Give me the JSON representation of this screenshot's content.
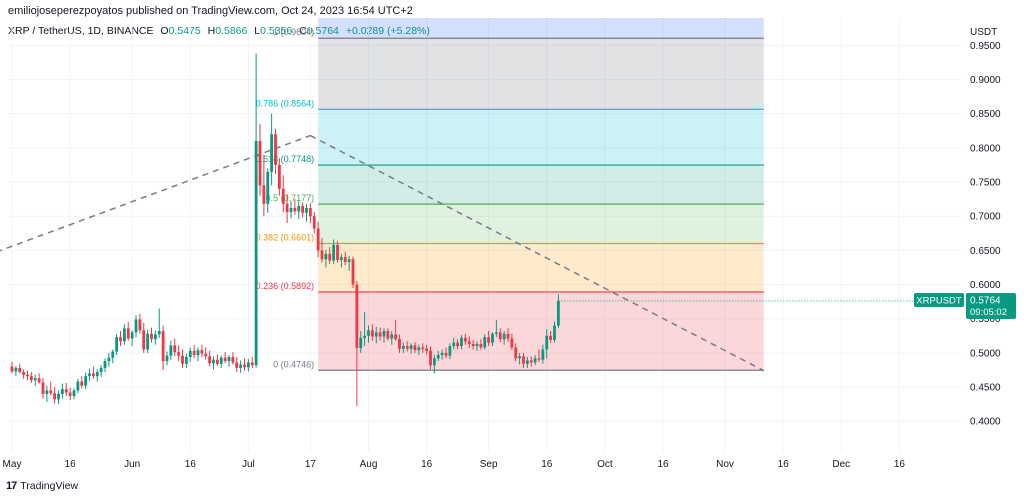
{
  "publisher_line": "emiliojoseperezpoyatos published on TradingView.com, Oct 24, 2023 16:54 UTC+2",
  "symbol_header": {
    "symbol": "XRP / TetherUS, 1D, BINANCE",
    "o_label": "O",
    "o_value": "0.5475",
    "h_label": "H",
    "h_value": "0.5866",
    "l_label": "L",
    "l_value": "0.5356",
    "c_label": "C",
    "c_value": "0.5764",
    "change": "+0.0289 (+5.28%)"
  },
  "currency": "USDT",
  "footer_brand": "TradingView",
  "footer_logo": "17",
  "price_tag": {
    "symbol": "XRPUSDT",
    "price": "0.5764",
    "countdown": "09:05:02"
  },
  "colors": {
    "up": "#089981",
    "down": "#f23645",
    "tag": "#089981",
    "grid": "#f0f3fa",
    "trend": "#787b86"
  },
  "chart_data": {
    "type": "candlestick",
    "ylim": [
      0.355,
      0.99
    ],
    "ytick_labels": [
      "0.9500",
      "0.9000",
      "0.8500",
      "0.8000",
      "0.7500",
      "0.7000",
      "0.6500",
      "0.6000",
      "0.5500",
      "0.5000",
      "0.4500",
      "0.4000"
    ],
    "ytick_values": [
      0.95,
      0.9,
      0.85,
      0.8,
      0.75,
      0.7,
      0.65,
      0.6,
      0.55,
      0.5,
      0.45,
      0.4
    ],
    "xtick_labels": [
      "May",
      "16",
      "Jun",
      "16",
      "Jul",
      "17",
      "Aug",
      "16",
      "Sep",
      "16",
      "Oct",
      "16",
      "Nov",
      "16",
      "Dec",
      "16"
    ],
    "xtick_days": [
      0,
      15,
      31,
      46,
      61,
      77,
      92,
      107,
      123,
      138,
      153,
      168,
      184,
      199,
      214,
      229
    ],
    "x_unit": "days since May 1, 2023",
    "candles": [
      [
        0.48,
        0.487,
        0.47,
        0.473
      ],
      [
        0.473,
        0.481,
        0.466,
        0.478
      ],
      [
        0.478,
        0.484,
        0.47,
        0.472
      ],
      [
        0.472,
        0.476,
        0.462,
        0.468
      ],
      [
        0.468,
        0.474,
        0.46,
        0.466
      ],
      [
        0.466,
        0.472,
        0.456,
        0.46
      ],
      [
        0.46,
        0.468,
        0.452,
        0.463
      ],
      [
        0.463,
        0.47,
        0.455,
        0.457
      ],
      [
        0.457,
        0.463,
        0.433,
        0.44
      ],
      [
        0.44,
        0.452,
        0.428,
        0.445
      ],
      [
        0.445,
        0.458,
        0.438,
        0.441
      ],
      [
        0.441,
        0.45,
        0.426,
        0.432
      ],
      [
        0.432,
        0.445,
        0.425,
        0.44
      ],
      [
        0.44,
        0.455,
        0.433,
        0.447
      ],
      [
        0.447,
        0.456,
        0.437,
        0.442
      ],
      [
        0.442,
        0.449,
        0.431,
        0.437
      ],
      [
        0.437,
        0.448,
        0.432,
        0.445
      ],
      [
        0.445,
        0.462,
        0.441,
        0.458
      ],
      [
        0.458,
        0.466,
        0.448,
        0.452
      ],
      [
        0.452,
        0.471,
        0.447,
        0.466
      ],
      [
        0.466,
        0.477,
        0.46,
        0.47
      ],
      [
        0.47,
        0.48,
        0.462,
        0.466
      ],
      [
        0.466,
        0.476,
        0.458,
        0.472
      ],
      [
        0.472,
        0.482,
        0.465,
        0.478
      ],
      [
        0.478,
        0.492,
        0.472,
        0.488
      ],
      [
        0.488,
        0.5,
        0.48,
        0.493
      ],
      [
        0.493,
        0.505,
        0.485,
        0.502
      ],
      [
        0.502,
        0.528,
        0.497,
        0.523
      ],
      [
        0.523,
        0.532,
        0.51,
        0.517
      ],
      [
        0.517,
        0.542,
        0.512,
        0.536
      ],
      [
        0.536,
        0.545,
        0.518,
        0.521
      ],
      [
        0.521,
        0.533,
        0.51,
        0.53
      ],
      [
        0.53,
        0.555,
        0.523,
        0.549
      ],
      [
        0.549,
        0.557,
        0.528,
        0.533
      ],
      [
        0.533,
        0.544,
        0.5,
        0.505
      ],
      [
        0.505,
        0.534,
        0.5,
        0.528
      ],
      [
        0.528,
        0.537,
        0.515,
        0.52
      ],
      [
        0.52,
        0.533,
        0.512,
        0.527
      ],
      [
        0.527,
        0.565,
        0.522,
        0.532
      ],
      [
        0.532,
        0.54,
        0.475,
        0.488
      ],
      [
        0.488,
        0.502,
        0.482,
        0.496
      ],
      [
        0.496,
        0.518,
        0.49,
        0.511
      ],
      [
        0.511,
        0.521,
        0.495,
        0.501
      ],
      [
        0.501,
        0.511,
        0.488,
        0.496
      ],
      [
        0.496,
        0.505,
        0.478,
        0.484
      ],
      [
        0.484,
        0.499,
        0.478,
        0.494
      ],
      [
        0.494,
        0.508,
        0.487,
        0.503
      ],
      [
        0.503,
        0.512,
        0.492,
        0.497
      ],
      [
        0.497,
        0.508,
        0.488,
        0.504
      ],
      [
        0.504,
        0.512,
        0.494,
        0.499
      ],
      [
        0.499,
        0.508,
        0.49,
        0.495
      ],
      [
        0.495,
        0.503,
        0.48,
        0.485
      ],
      [
        0.485,
        0.495,
        0.476,
        0.49
      ],
      [
        0.49,
        0.498,
        0.481,
        0.484
      ],
      [
        0.484,
        0.496,
        0.478,
        0.493
      ],
      [
        0.493,
        0.501,
        0.485,
        0.488
      ],
      [
        0.488,
        0.497,
        0.48,
        0.494
      ],
      [
        0.494,
        0.501,
        0.483,
        0.486
      ],
      [
        0.486,
        0.494,
        0.472,
        0.478
      ],
      [
        0.478,
        0.489,
        0.471,
        0.483
      ],
      [
        0.483,
        0.492,
        0.474,
        0.479
      ],
      [
        0.479,
        0.491,
        0.473,
        0.486
      ],
      [
        0.486,
        0.494,
        0.478,
        0.482
      ],
      [
        0.482,
        0.938,
        0.478,
        0.81
      ],
      [
        0.81,
        0.835,
        0.73,
        0.745
      ],
      [
        0.745,
        0.79,
        0.7,
        0.718
      ],
      [
        0.718,
        0.77,
        0.705,
        0.765
      ],
      [
        0.765,
        0.85,
        0.745,
        0.82
      ],
      [
        0.82,
        0.828,
        0.762,
        0.775
      ],
      [
        0.775,
        0.785,
        0.73,
        0.74
      ],
      [
        0.74,
        0.76,
        0.706,
        0.718
      ],
      [
        0.718,
        0.732,
        0.69,
        0.706
      ],
      [
        0.706,
        0.722,
        0.697,
        0.712
      ],
      [
        0.712,
        0.725,
        0.702,
        0.707
      ],
      [
        0.707,
        0.722,
        0.696,
        0.715
      ],
      [
        0.715,
        0.72,
        0.698,
        0.705
      ],
      [
        0.705,
        0.718,
        0.692,
        0.712
      ],
      [
        0.712,
        0.719,
        0.69,
        0.7
      ],
      [
        0.7,
        0.706,
        0.675,
        0.682
      ],
      [
        0.682,
        0.692,
        0.64,
        0.65
      ],
      [
        0.65,
        0.668,
        0.632,
        0.637
      ],
      [
        0.637,
        0.651,
        0.625,
        0.645
      ],
      [
        0.645,
        0.655,
        0.63,
        0.635
      ],
      [
        0.635,
        0.666,
        0.63,
        0.658
      ],
      [
        0.658,
        0.664,
        0.632,
        0.636
      ],
      [
        0.636,
        0.645,
        0.625,
        0.64
      ],
      [
        0.64,
        0.648,
        0.628,
        0.633
      ],
      [
        0.633,
        0.642,
        0.62,
        0.637
      ],
      [
        0.637,
        0.641,
        0.595,
        0.6
      ],
      [
        0.6,
        0.605,
        0.422,
        0.507
      ],
      [
        0.507,
        0.532,
        0.5,
        0.522
      ],
      [
        0.522,
        0.56,
        0.51,
        0.525
      ],
      [
        0.525,
        0.54,
        0.515,
        0.533
      ],
      [
        0.533,
        0.542,
        0.518,
        0.524
      ],
      [
        0.524,
        0.538,
        0.514,
        0.53
      ],
      [
        0.53,
        0.537,
        0.518,
        0.524
      ],
      [
        0.524,
        0.536,
        0.515,
        0.532
      ],
      [
        0.532,
        0.536,
        0.518,
        0.521
      ],
      [
        0.521,
        0.532,
        0.512,
        0.527
      ],
      [
        0.527,
        0.548,
        0.518,
        0.52
      ],
      [
        0.52,
        0.527,
        0.5,
        0.506
      ],
      [
        0.506,
        0.515,
        0.5,
        0.51
      ],
      [
        0.51,
        0.517,
        0.502,
        0.506
      ],
      [
        0.506,
        0.514,
        0.499,
        0.511
      ],
      [
        0.511,
        0.516,
        0.5,
        0.504
      ],
      [
        0.504,
        0.512,
        0.497,
        0.508
      ],
      [
        0.508,
        0.514,
        0.5,
        0.506
      ],
      [
        0.506,
        0.512,
        0.498,
        0.503
      ],
      [
        0.503,
        0.51,
        0.476,
        0.482
      ],
      [
        0.482,
        0.497,
        0.47,
        0.492
      ],
      [
        0.492,
        0.503,
        0.488,
        0.497
      ],
      [
        0.497,
        0.505,
        0.49,
        0.5
      ],
      [
        0.5,
        0.508,
        0.492,
        0.496
      ],
      [
        0.496,
        0.514,
        0.491,
        0.51
      ],
      [
        0.51,
        0.522,
        0.505,
        0.515
      ],
      [
        0.515,
        0.52,
        0.505,
        0.51
      ],
      [
        0.51,
        0.526,
        0.505,
        0.522
      ],
      [
        0.522,
        0.528,
        0.512,
        0.517
      ],
      [
        0.517,
        0.524,
        0.507,
        0.513
      ],
      [
        0.513,
        0.519,
        0.505,
        0.51
      ],
      [
        0.51,
        0.517,
        0.503,
        0.513
      ],
      [
        0.513,
        0.52,
        0.505,
        0.508
      ],
      [
        0.508,
        0.527,
        0.505,
        0.523
      ],
      [
        0.523,
        0.532,
        0.51,
        0.515
      ],
      [
        0.515,
        0.53,
        0.51,
        0.528
      ],
      [
        0.528,
        0.548,
        0.523,
        0.53
      ],
      [
        0.53,
        0.536,
        0.516,
        0.52
      ],
      [
        0.52,
        0.532,
        0.512,
        0.528
      ],
      [
        0.528,
        0.536,
        0.516,
        0.521
      ],
      [
        0.521,
        0.528,
        0.504,
        0.508
      ],
      [
        0.508,
        0.514,
        0.488,
        0.492
      ],
      [
        0.492,
        0.5,
        0.483,
        0.495
      ],
      [
        0.495,
        0.5,
        0.478,
        0.484
      ],
      [
        0.484,
        0.494,
        0.478,
        0.489
      ],
      [
        0.489,
        0.495,
        0.48,
        0.486
      ],
      [
        0.486,
        0.497,
        0.482,
        0.492
      ],
      [
        0.492,
        0.505,
        0.487,
        0.49
      ],
      [
        0.49,
        0.512,
        0.484,
        0.505
      ],
      [
        0.505,
        0.535,
        0.492,
        0.525
      ],
      [
        0.525,
        0.532,
        0.515,
        0.519
      ],
      [
        0.519,
        0.546,
        0.515,
        0.54
      ],
      [
        0.54,
        0.586,
        0.536,
        0.576
      ]
    ],
    "fib_levels": [
      {
        "label": "1 (0.9604)",
        "value": 0.9604,
        "line": "#787b86",
        "fill": "rgba(120,123,134,0.22)"
      },
      {
        "label": "0.786 (0.8564)",
        "value": 0.8564,
        "line": "#00bcd4",
        "fill": "rgba(0,188,212,0.20)"
      },
      {
        "label": "0.618 (0.7748)",
        "value": 0.7748,
        "line": "#089981",
        "fill": "rgba(8,153,129,0.18)"
      },
      {
        "label": "0.5 (0.7177)",
        "value": 0.7177,
        "line": "#4caf50",
        "fill": "rgba(76,175,80,0.18)"
      },
      {
        "label": "0.382 (0.6601)",
        "value": 0.6601,
        "line": "#ff9800",
        "fill": "rgba(255,152,0,0.20)"
      },
      {
        "label": "0.236 (0.5892)",
        "value": 0.5892,
        "line": "#f23645",
        "fill": "rgba(242,54,69,0.20)"
      },
      {
        "label": "0 (0.4746)",
        "value": 0.4746,
        "line": "#787b86",
        "fill": null
      }
    ],
    "fib_top_fill": "rgba(41,98,255,0.20)",
    "fib_top_value": 0.99,
    "fib_start_day": 79,
    "fib_end_day": 194,
    "trend_lines": [
      {
        "from": [
          -20,
          0.614
        ],
        "to": [
          77,
          0.818
        ]
      },
      {
        "from": [
          77,
          0.818
        ],
        "to": [
          194,
          0.474
        ]
      }
    ]
  }
}
